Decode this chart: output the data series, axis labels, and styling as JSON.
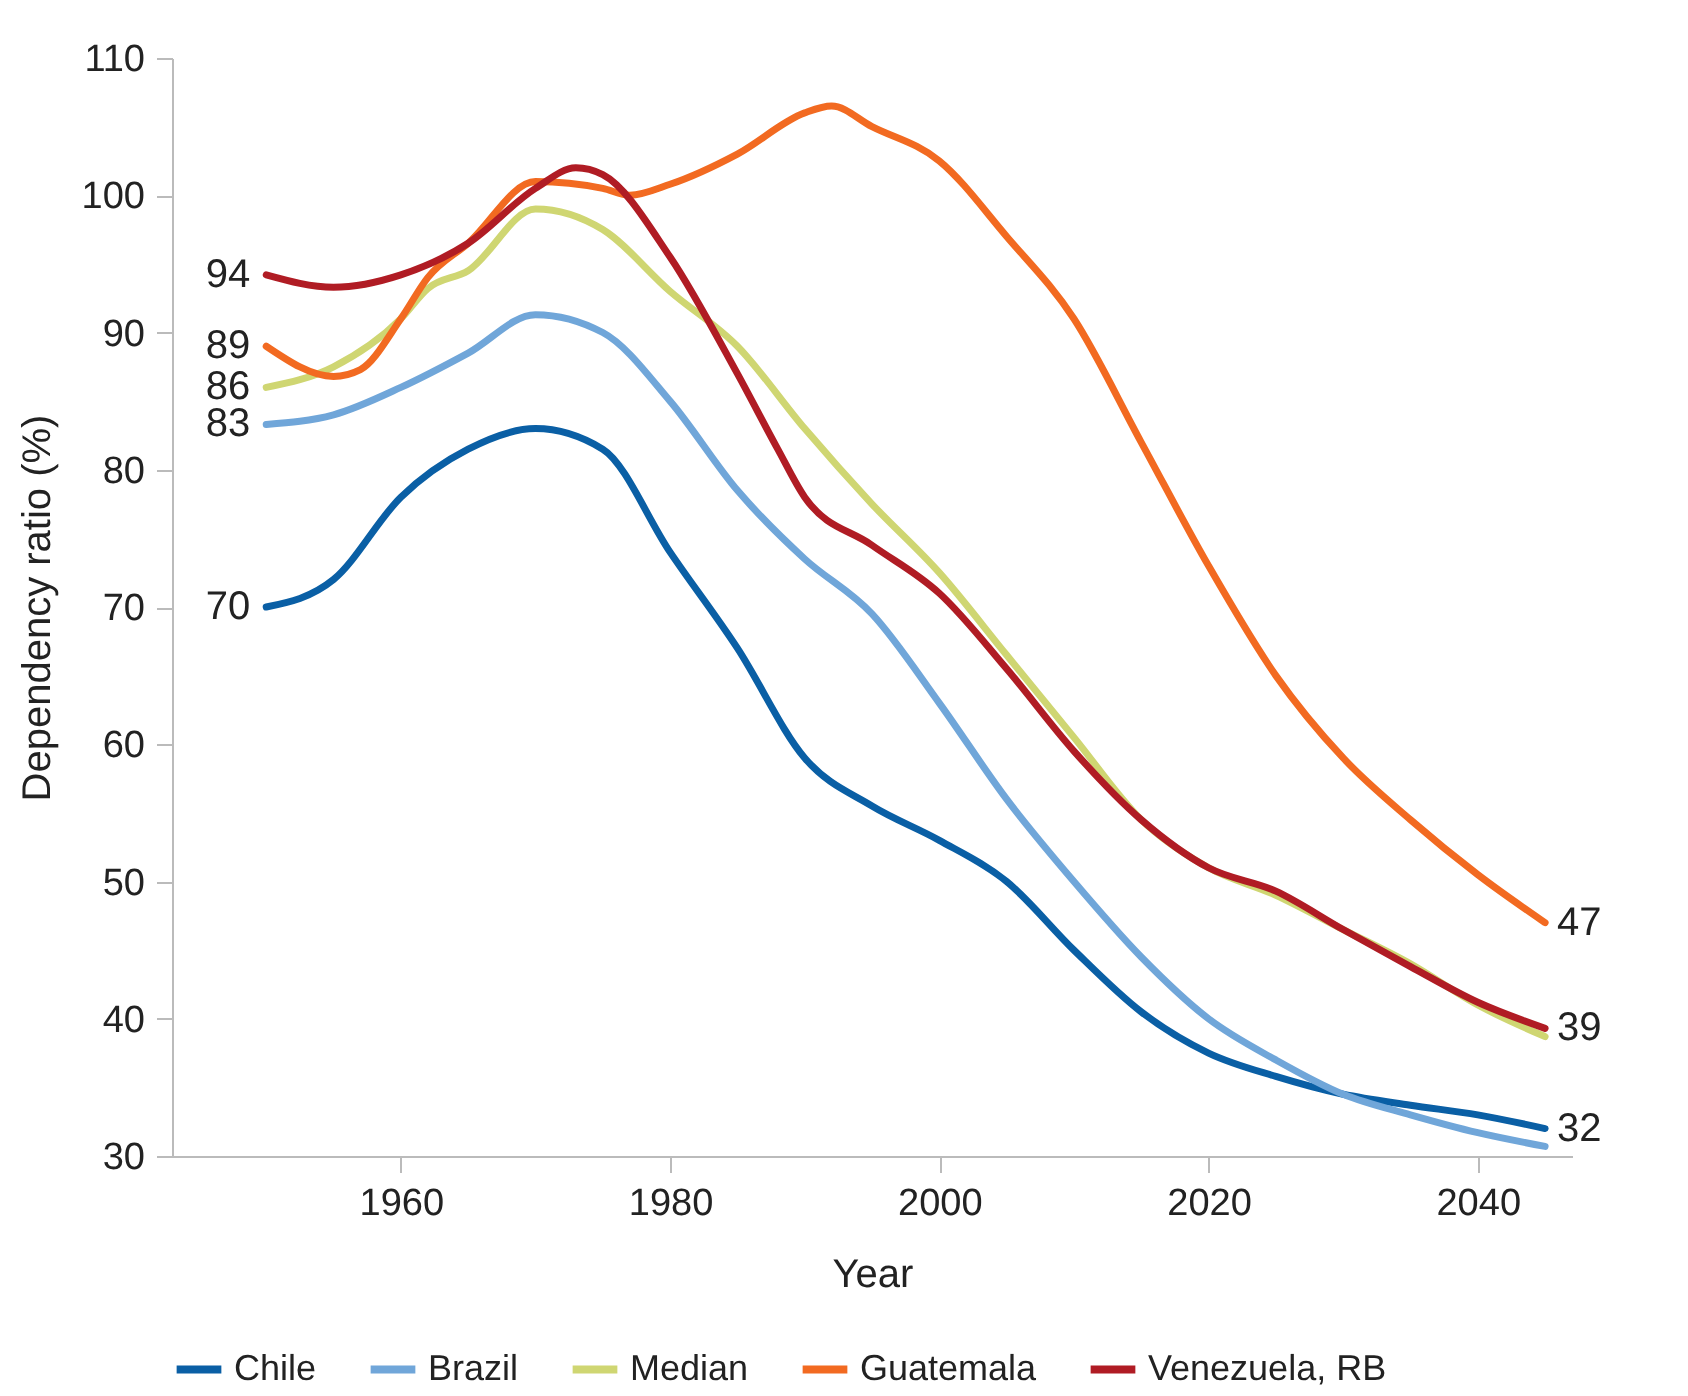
{
  "chart_data": {
    "type": "line",
    "xlabel": "Year",
    "ylabel": "Dependency ratio (%)",
    "xlim": [
      1943,
      2047
    ],
    "xticks": [
      1960,
      1980,
      2000,
      2020,
      2040
    ],
    "ylim": [
      30,
      110
    ],
    "yticks": [
      30,
      40,
      50,
      60,
      70,
      80,
      90,
      100,
      110
    ],
    "grid": false,
    "legend": "bottom",
    "line_style": "solid",
    "marker": "none",
    "series": [
      {
        "name": "Chile",
        "color": "#0a5fa5",
        "x": [
          1950,
          1955,
          1960,
          1965,
          1970,
          1975,
          1980,
          1985,
          1990,
          1995,
          2000,
          2005,
          2010,
          2015,
          2020,
          2025,
          2030,
          2035,
          2040,
          2045
        ],
        "values": [
          70,
          72,
          78,
          81.5,
          83,
          81.5,
          74,
          67,
          59,
          55.5,
          53,
          50,
          45,
          40.5,
          37.5,
          35.8,
          34.5,
          33.7,
          33,
          32
        ],
        "value_labels": [
          "70",
          null,
          null,
          null,
          null,
          null,
          null,
          null,
          null,
          null,
          null,
          null,
          null,
          null,
          null,
          null,
          null,
          null,
          null,
          "32"
        ]
      },
      {
        "name": "Brazil",
        "color": "#70a6d9",
        "x": [
          1950,
          1955,
          1960,
          1965,
          1970,
          1975,
          1980,
          1985,
          1990,
          1995,
          2000,
          2005,
          2010,
          2015,
          2020,
          2025,
          2030,
          2035,
          2040,
          2045
        ],
        "values": [
          83.3,
          84,
          86,
          88.5,
          91.3,
          90,
          85,
          78.5,
          73.5,
          69.5,
          63,
          56,
          50,
          44.5,
          40,
          37,
          34.5,
          33,
          31.7,
          30.7
        ],
        "value_labels": [
          "83",
          null,
          null,
          null,
          null,
          null,
          null,
          null,
          null,
          null,
          null,
          null,
          null,
          null,
          null,
          null,
          null,
          null,
          null,
          null
        ]
      },
      {
        "name": "Median",
        "color": "#cfd672",
        "x": [
          1950,
          1955,
          1960,
          1962,
          1965,
          1970,
          1975,
          1980,
          1985,
          1990,
          1995,
          2000,
          2005,
          2010,
          2015,
          2020,
          2025,
          2030,
          2035,
          2040,
          2045
        ],
        "values": [
          86,
          87.5,
          91,
          93.2,
          94.5,
          99,
          97.5,
          93,
          89,
          83,
          77.5,
          72.5,
          66.5,
          60.5,
          54.5,
          51,
          49,
          46.5,
          44,
          41,
          38.7
        ],
        "value_labels": [
          "86",
          null,
          null,
          null,
          null,
          null,
          null,
          null,
          null,
          null,
          null,
          null,
          null,
          null,
          null,
          null,
          null,
          null,
          null,
          null,
          null
        ]
      },
      {
        "name": "Guatemala",
        "color": "#f26a21",
        "x": [
          1950,
          1955,
          1957,
          1960,
          1962,
          1965,
          1970,
          1975,
          1977,
          1980,
          1985,
          1990,
          1992,
          1995,
          2000,
          2005,
          2010,
          2015,
          2020,
          2025,
          2030,
          2035,
          2040,
          2045
        ],
        "values": [
          89,
          86.8,
          87.3,
          91,
          94,
          96.5,
          101,
          100.5,
          100,
          100.8,
          103,
          106,
          106.5,
          105,
          102.5,
          97,
          91,
          82,
          73,
          65,
          59,
          54.5,
          50.5,
          47
        ],
        "value_labels": [
          "89",
          null,
          null,
          null,
          null,
          null,
          null,
          null,
          null,
          null,
          null,
          null,
          null,
          null,
          null,
          null,
          null,
          null,
          null,
          null,
          null,
          null,
          null,
          "47"
        ]
      },
      {
        "name": "Venezuela, RB",
        "color": "#b01c24",
        "x": [
          1950,
          1955,
          1960,
          1965,
          1970,
          1973,
          1975,
          1980,
          1985,
          1988,
          1990,
          1995,
          2000,
          2005,
          2010,
          2015,
          2020,
          2025,
          2030,
          2035,
          2040,
          2045
        ],
        "values": [
          94.2,
          93.3,
          94.2,
          96.5,
          100.5,
          102,
          101.5,
          95.5,
          87,
          81.5,
          78,
          74.5,
          71,
          65.5,
          59.5,
          54.5,
          51,
          49.3,
          46.5,
          43.8,
          41.2,
          39.3
        ],
        "value_labels": [
          "94",
          null,
          null,
          null,
          null,
          null,
          null,
          null,
          null,
          null,
          null,
          null,
          null,
          null,
          null,
          null,
          null,
          null,
          null,
          null,
          null,
          "39"
        ]
      }
    ]
  }
}
